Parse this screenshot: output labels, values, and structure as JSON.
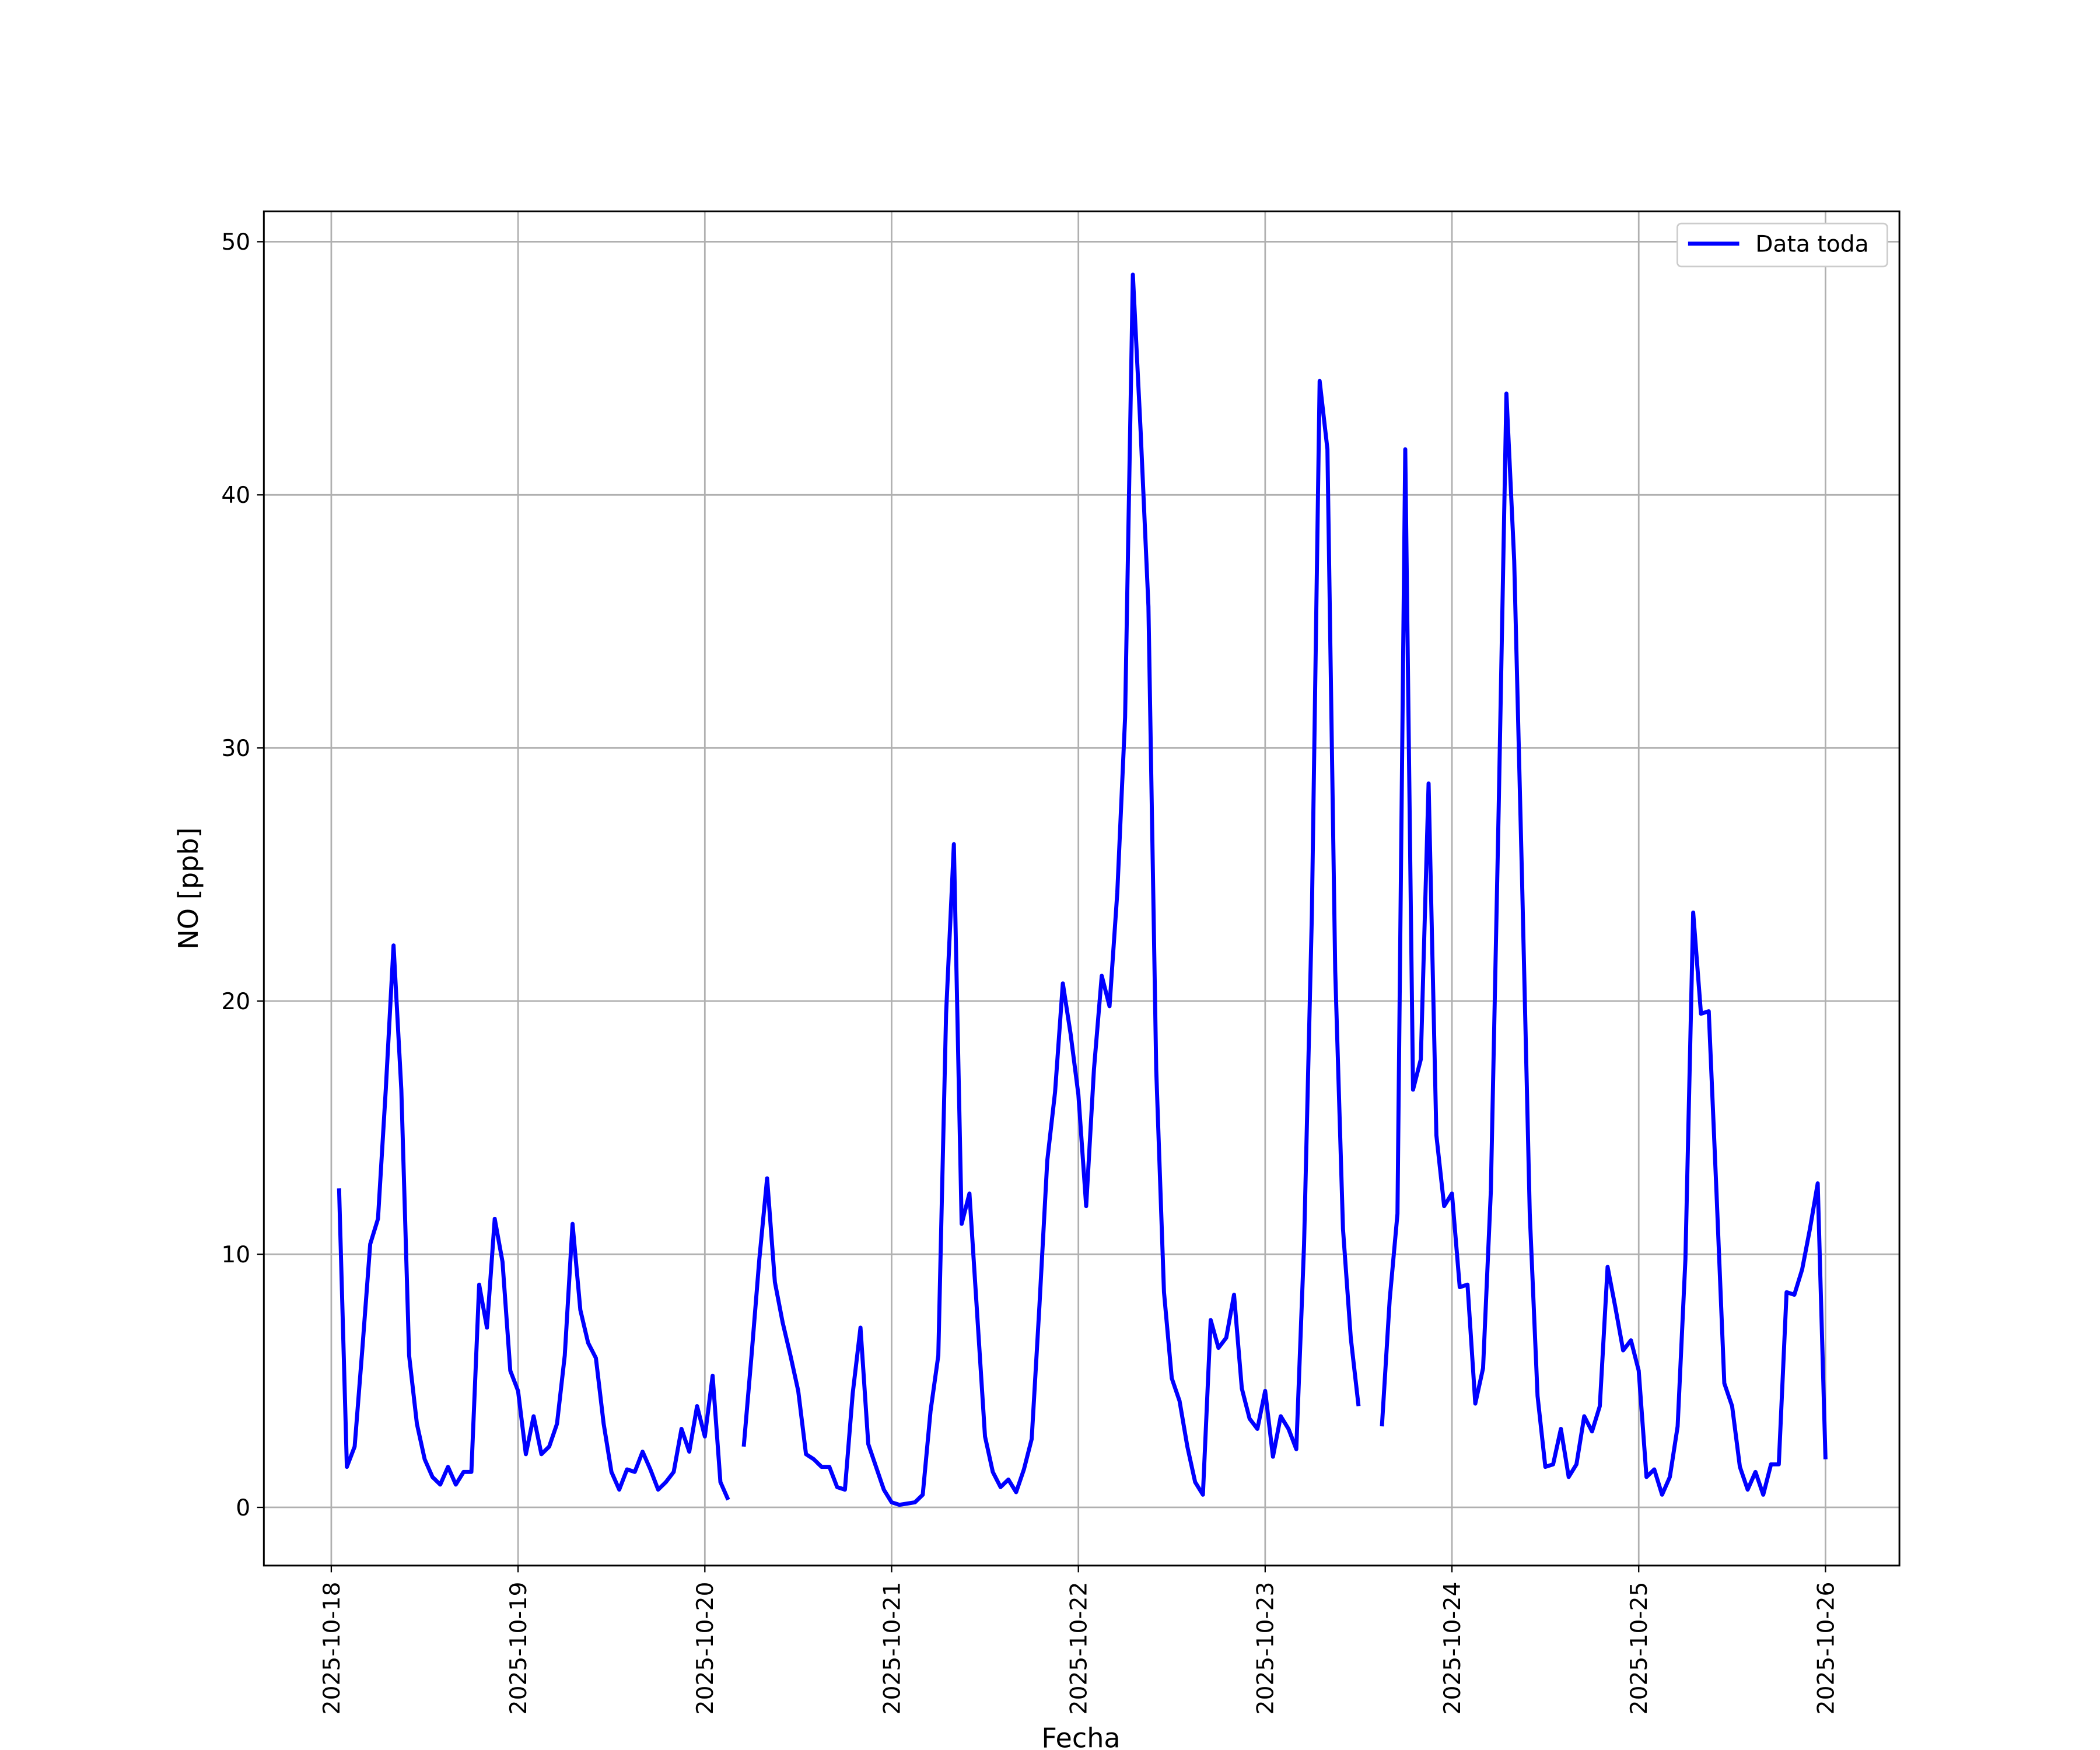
{
  "chart_data": {
    "type": "line",
    "xlabel": "Fecha",
    "ylabel": "NO [ppb]",
    "grid": true,
    "legend": "upper right",
    "xlim": [
      "2025-10-17 15:20",
      "2025-10-26 09:30"
    ],
    "xticks": [
      "2025-10-18",
      "2025-10-19",
      "2025-10-20",
      "2025-10-21",
      "2025-10-22",
      "2025-10-23",
      "2025-10-24",
      "2025-10-25",
      "2025-10-26"
    ],
    "ylim": [
      -2.3,
      51.2
    ],
    "yticks": [
      0,
      10,
      20,
      30,
      40,
      50
    ],
    "x": [
      "2025-10-18 01:00",
      "2025-10-18 02:00",
      "2025-10-18 03:00",
      "2025-10-18 04:00",
      "2025-10-18 05:00",
      "2025-10-18 06:00",
      "2025-10-18 07:00",
      "2025-10-18 08:00",
      "2025-10-18 09:00",
      "2025-10-18 10:00",
      "2025-10-18 11:00",
      "2025-10-18 12:00",
      "2025-10-18 13:00",
      "2025-10-18 14:00",
      "2025-10-18 15:00",
      "2025-10-18 16:00",
      "2025-10-18 17:00",
      "2025-10-18 18:00",
      "2025-10-18 19:00",
      "2025-10-18 20:00",
      "2025-10-18 21:00",
      "2025-10-18 22:00",
      "2025-10-18 23:00",
      "2025-10-19 00:00",
      "2025-10-19 01:00",
      "2025-10-19 02:00",
      "2025-10-19 03:00",
      "2025-10-19 04:00",
      "2025-10-19 05:00",
      "2025-10-19 06:00",
      "2025-10-19 07:00",
      "2025-10-19 08:00",
      "2025-10-19 09:00",
      "2025-10-19 10:00",
      "2025-10-19 11:00",
      "2025-10-19 12:00",
      "2025-10-19 13:00",
      "2025-10-19 14:00",
      "2025-10-19 15:00",
      "2025-10-19 16:00",
      "2025-10-19 17:00",
      "2025-10-19 18:00",
      "2025-10-19 19:00",
      "2025-10-19 20:00",
      "2025-10-19 21:00",
      "2025-10-19 22:00",
      "2025-10-19 23:00",
      "2025-10-20 00:00",
      "2025-10-20 01:00",
      "2025-10-20 02:00",
      "2025-10-20 03:00",
      "2025-10-20 04:00",
      "2025-10-20 05:00",
      "2025-10-20 06:00",
      "2025-10-20 07:00",
      "2025-10-20 08:00",
      "2025-10-20 09:00",
      "2025-10-20 10:00",
      "2025-10-20 11:00",
      "2025-10-20 12:00",
      "2025-10-20 13:00",
      "2025-10-20 14:00",
      "2025-10-20 15:00",
      "2025-10-20 16:00",
      "2025-10-20 17:00",
      "2025-10-20 18:00",
      "2025-10-20 19:00",
      "2025-10-20 20:00",
      "2025-10-20 21:00",
      "2025-10-20 22:00",
      "2025-10-20 23:00",
      "2025-10-21 00:00",
      "2025-10-21 01:00",
      "2025-10-21 02:00",
      "2025-10-21 03:00",
      "2025-10-21 04:00",
      "2025-10-21 05:00",
      "2025-10-21 06:00",
      "2025-10-21 07:00",
      "2025-10-21 08:00",
      "2025-10-21 09:00",
      "2025-10-21 10:00",
      "2025-10-21 11:00",
      "2025-10-21 12:00",
      "2025-10-21 13:00",
      "2025-10-21 14:00",
      "2025-10-21 15:00",
      "2025-10-21 16:00",
      "2025-10-21 17:00",
      "2025-10-21 18:00",
      "2025-10-21 19:00",
      "2025-10-21 20:00",
      "2025-10-21 21:00",
      "2025-10-21 22:00",
      "2025-10-21 23:00",
      "2025-10-22 00:00",
      "2025-10-22 01:00",
      "2025-10-22 02:00",
      "2025-10-22 03:00",
      "2025-10-22 04:00",
      "2025-10-22 05:00",
      "2025-10-22 06:00",
      "2025-10-22 07:00",
      "2025-10-22 08:00",
      "2025-10-22 09:00",
      "2025-10-22 10:00",
      "2025-10-22 11:00",
      "2025-10-22 12:00",
      "2025-10-22 13:00",
      "2025-10-22 14:00",
      "2025-10-22 15:00",
      "2025-10-22 16:00",
      "2025-10-22 17:00",
      "2025-10-22 18:00",
      "2025-10-22 19:00",
      "2025-10-22 20:00",
      "2025-10-22 21:00",
      "2025-10-22 22:00",
      "2025-10-22 23:00",
      "2025-10-23 00:00",
      "2025-10-23 01:00",
      "2025-10-23 02:00",
      "2025-10-23 03:00",
      "2025-10-23 04:00",
      "2025-10-23 05:00",
      "2025-10-23 06:00",
      "2025-10-23 07:00",
      "2025-10-23 08:00",
      "2025-10-23 09:00",
      "2025-10-23 10:00",
      "2025-10-23 11:00",
      "2025-10-23 12:00",
      "2025-10-23 13:00",
      "2025-10-23 14:00",
      "2025-10-23 15:00",
      "2025-10-23 16:00",
      "2025-10-23 17:00",
      "2025-10-23 18:00",
      "2025-10-23 19:00",
      "2025-10-23 20:00",
      "2025-10-23 21:00",
      "2025-10-23 22:00",
      "2025-10-23 23:00",
      "2025-10-24 00:00",
      "2025-10-24 01:00",
      "2025-10-24 02:00",
      "2025-10-24 03:00",
      "2025-10-24 04:00",
      "2025-10-24 05:00",
      "2025-10-24 06:00",
      "2025-10-24 07:00",
      "2025-10-24 08:00",
      "2025-10-24 09:00",
      "2025-10-24 10:00",
      "2025-10-24 11:00",
      "2025-10-24 12:00",
      "2025-10-24 13:00",
      "2025-10-24 14:00",
      "2025-10-24 15:00",
      "2025-10-24 16:00",
      "2025-10-24 17:00",
      "2025-10-24 18:00",
      "2025-10-24 19:00",
      "2025-10-24 20:00",
      "2025-10-24 21:00",
      "2025-10-24 22:00",
      "2025-10-24 23:00",
      "2025-10-25 00:00",
      "2025-10-25 01:00",
      "2025-10-25 02:00",
      "2025-10-25 03:00",
      "2025-10-25 04:00",
      "2025-10-25 05:00",
      "2025-10-25 06:00",
      "2025-10-25 07:00",
      "2025-10-25 08:00",
      "2025-10-25 09:00",
      "2025-10-25 10:00",
      "2025-10-25 11:00",
      "2025-10-25 12:00",
      "2025-10-25 13:00",
      "2025-10-25 14:00",
      "2025-10-25 15:00",
      "2025-10-25 16:00",
      "2025-10-25 17:00",
      "2025-10-25 18:00",
      "2025-10-25 19:00",
      "2025-10-25 20:00",
      "2025-10-25 21:00",
      "2025-10-25 22:00",
      "2025-10-25 23:00",
      "2025-10-26 00:00"
    ],
    "series": [
      {
        "name": "Data toda",
        "color": "#0000ff",
        "values": [
          12.6,
          1.6,
          2.4,
          6.3,
          10.4,
          11.4,
          16.5,
          22.2,
          16.5,
          6.0,
          3.3,
          1.9,
          1.2,
          0.9,
          1.6,
          0.9,
          1.4,
          1.4,
          8.8,
          7.1,
          11.4,
          9.7,
          5.4,
          4.6,
          2.1,
          3.6,
          2.1,
          2.4,
          3.3,
          6.0,
          11.2,
          7.8,
          6.5,
          5.9,
          3.3,
          1.4,
          0.7,
          1.5,
          1.4,
          2.2,
          1.5,
          0.7,
          1.0,
          1.4,
          3.1,
          2.2,
          4.0,
          2.8,
          5.2,
          1.0,
          0.3,
          null,
          2.4,
          6.0,
          9.8,
          13.0,
          8.9,
          7.3,
          6.0,
          4.6,
          2.1,
          1.9,
          1.6,
          1.6,
          0.8,
          0.7,
          4.5,
          7.1,
          2.5,
          1.6,
          0.7,
          0.2,
          0.1,
          0.15,
          0.2,
          0.5,
          3.8,
          6.0,
          19.5,
          26.2,
          11.2,
          12.4,
          7.6,
          2.8,
          1.4,
          0.8,
          1.1,
          0.6,
          1.5,
          2.7,
          8.0,
          13.7,
          16.4,
          20.7,
          18.7,
          16.3,
          11.9,
          17.3,
          21.0,
          19.8,
          24.3,
          31.2,
          48.7,
          42.5,
          35.6,
          17.3,
          8.5,
          5.1,
          4.2,
          2.4,
          1.0,
          0.5,
          7.4,
          6.3,
          6.7,
          8.4,
          4.7,
          3.5,
          3.1,
          4.6,
          2.0,
          3.6,
          3.1,
          2.3,
          10.4,
          23.4,
          44.5,
          41.8,
          21.2,
          11.0,
          6.7,
          4.0,
          null,
          null,
          3.2,
          8.2,
          11.6,
          41.8,
          16.5,
          17.7,
          28.6,
          14.7,
          11.9,
          12.4,
          8.7,
          8.8,
          4.1,
          5.5,
          12.5,
          27.5,
          44.0,
          37.4,
          24.9,
          11.6,
          4.4,
          1.6,
          1.7,
          3.1,
          1.2,
          1.7,
          3.6,
          3.0,
          4.0,
          9.5,
          7.9,
          6.2,
          6.6,
          5.4,
          1.2,
          1.5,
          0.5,
          1.2,
          3.2,
          9.8,
          23.5,
          19.5,
          19.6,
          12.4,
          4.9,
          4.0,
          1.6,
          0.7,
          1.4,
          0.5,
          1.7,
          1.7,
          8.5,
          8.4,
          9.4,
          11.0,
          12.8,
          1.9
        ]
      }
    ]
  }
}
